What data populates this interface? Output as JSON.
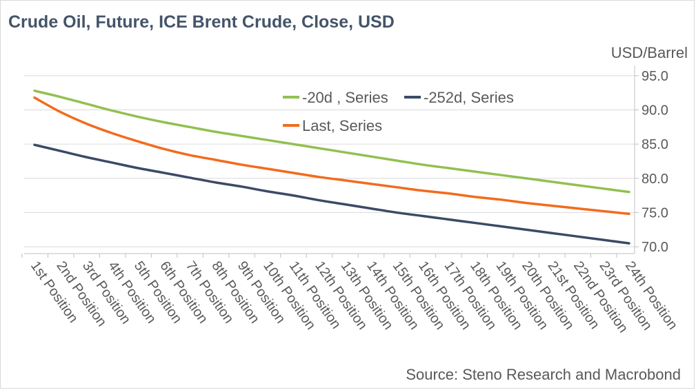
{
  "title": "Crude Oil, Future, ICE Brent Crude, Close, USD",
  "source": "Source: Steno Research and Macrobond",
  "chart_data": {
    "type": "line",
    "title": "Crude Oil, Future, ICE Brent Crude, Close, USD",
    "xlabel": "",
    "ylabel": "USD/Barrel",
    "ylim": [
      69,
      97
    ],
    "yticks": [
      70.0,
      75.0,
      80.0,
      85.0,
      90.0,
      95.0
    ],
    "y_axis_side": "right",
    "grid": true,
    "legend_position": "top-center",
    "categories": [
      "1st Position",
      "2nd Position",
      "3rd Position",
      "4th Position",
      "5th Position",
      "6th Position",
      "7th Position",
      "8th Position",
      "9th Position",
      "10th Position",
      "11th Position",
      "12th Position",
      "13th Position",
      "14th Position",
      "15th Position",
      "16th Position",
      "17th Position",
      "18th Position",
      "19th Position",
      "20th Position",
      "21st Position",
      "22nd Position",
      "23rd Position",
      "24th Position"
    ],
    "series": [
      {
        "name": "-20d , Series",
        "color": "#92c050",
        "values": [
          92.8,
          91.9,
          90.9,
          89.9,
          89.0,
          88.2,
          87.5,
          86.8,
          86.2,
          85.6,
          85.0,
          84.4,
          83.8,
          83.2,
          82.6,
          82.0,
          81.5,
          81.0,
          80.5,
          80.0,
          79.5,
          79.0,
          78.5,
          78.0
        ]
      },
      {
        "name": "-252d, Series",
        "color": "#3b4a66",
        "values": [
          84.9,
          84.0,
          83.1,
          82.3,
          81.5,
          80.8,
          80.1,
          79.4,
          78.8,
          78.1,
          77.5,
          76.8,
          76.2,
          75.6,
          75.0,
          74.5,
          74.0,
          73.5,
          73.0,
          72.5,
          72.0,
          71.5,
          71.0,
          70.5
        ]
      },
      {
        "name": "Last, Series",
        "color": "#f26b1d",
        "values": [
          91.8,
          89.7,
          88.0,
          86.6,
          85.4,
          84.3,
          83.4,
          82.7,
          82.0,
          81.4,
          80.8,
          80.2,
          79.7,
          79.2,
          78.7,
          78.2,
          77.8,
          77.3,
          76.9,
          76.4,
          76.0,
          75.6,
          75.2,
          74.8
        ]
      }
    ]
  }
}
